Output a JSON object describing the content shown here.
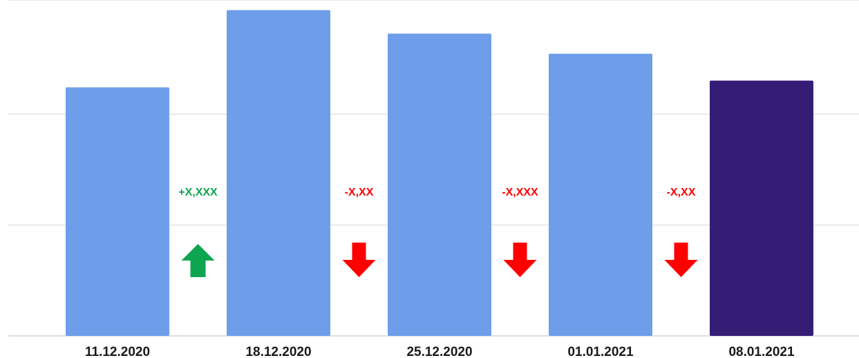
{
  "chart_data": {
    "type": "bar",
    "categories": [
      "11.12.2020",
      "18.12.2020",
      "25.12.2020",
      "01.01.2021",
      "08.01.2021"
    ],
    "values": [
      74,
      97,
      90,
      84,
      76
    ],
    "ylim": [
      0,
      100
    ],
    "grid": true,
    "gridlines": [
      0,
      33,
      66,
      100
    ],
    "bar_colors": [
      "#6e9eea",
      "#6e9eea",
      "#6e9eea",
      "#6e9eea",
      "#351d76"
    ],
    "annotations": [
      {
        "label": "+X,XXX",
        "direction": "up",
        "color": "#0ea550"
      },
      {
        "label": "-X,XX",
        "direction": "down",
        "color": "#ff0000"
      },
      {
        "label": "-X,XXX",
        "direction": "down",
        "color": "#ff0000"
      },
      {
        "label": "-X,XX",
        "direction": "down",
        "color": "#ff0000"
      }
    ]
  }
}
